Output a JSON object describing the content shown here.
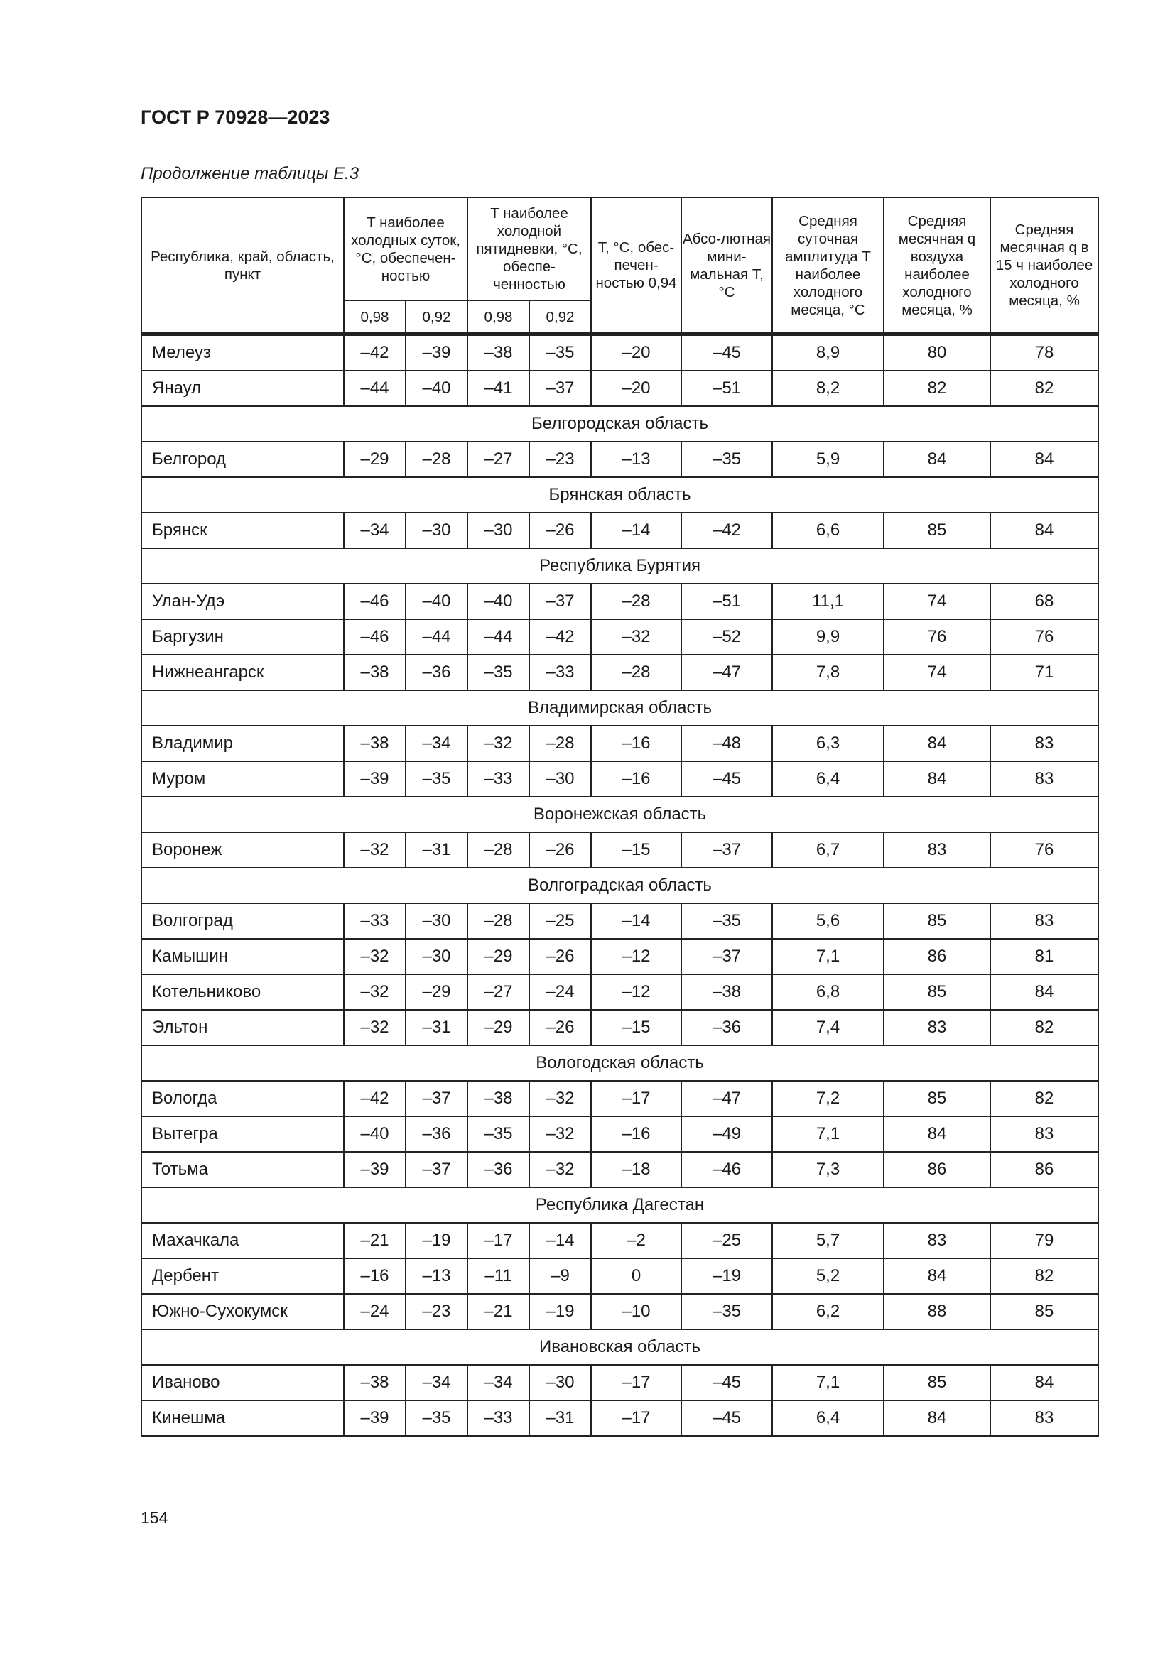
{
  "document": {
    "title": "ГОСТ Р 70928—2023",
    "caption": "Продолжение таблицы Е.3",
    "page_number": "154"
  },
  "table": {
    "headers": {
      "location": "Республика, край, область, пункт",
      "coldest_day": "T наиболее холодных суток, °С, обеспечен-ностью",
      "coldest_5day": "T наиболее холодной пятидневки, °С, обеспе-ченностью",
      "t_094": "T, °С, обес-печен-ностью 0,94",
      "abs_min": "Абсо-лютная мини-мальная T, °С",
      "daily_amplitude": "Средняя суточная амплитуда T наиболее холодного месяца, °С",
      "monthly_humidity": "Средняя месячная q воздуха наиболее холодного месяца, %",
      "humidity_15h": "Средняя месячная q в 15 ч наиболее холодного месяца, %",
      "sub": [
        "0,98",
        "0,92",
        "0,98",
        "0,92"
      ]
    },
    "rows": [
      {
        "name": "Мелеуз",
        "values": [
          "–42",
          "–39",
          "–38",
          "–35",
          "–20",
          "–45",
          "8,9",
          "80",
          "78"
        ]
      },
      {
        "name": "Янаул",
        "values": [
          "–44",
          "–40",
          "–41",
          "–37",
          "–20",
          "–51",
          "8,2",
          "82",
          "82"
        ]
      },
      {
        "region": "Белгородская область"
      },
      {
        "name": "Белгород",
        "values": [
          "–29",
          "–28",
          "–27",
          "–23",
          "–13",
          "–35",
          "5,9",
          "84",
          "84"
        ]
      },
      {
        "region": "Брянская область"
      },
      {
        "name": "Брянск",
        "values": [
          "–34",
          "–30",
          "–30",
          "–26",
          "–14",
          "–42",
          "6,6",
          "85",
          "84"
        ]
      },
      {
        "region": "Республика Бурятия"
      },
      {
        "name": "Улан-Удэ",
        "values": [
          "–46",
          "–40",
          "–40",
          "–37",
          "–28",
          "–51",
          "11,1",
          "74",
          "68"
        ]
      },
      {
        "name": "Баргузин",
        "values": [
          "–46",
          "–44",
          "–44",
          "–42",
          "–32",
          "–52",
          "9,9",
          "76",
          "76"
        ]
      },
      {
        "name": "Нижнеангарск",
        "values": [
          "–38",
          "–36",
          "–35",
          "–33",
          "–28",
          "–47",
          "7,8",
          "74",
          "71"
        ]
      },
      {
        "region": "Владимирская область"
      },
      {
        "name": "Владимир",
        "values": [
          "–38",
          "–34",
          "–32",
          "–28",
          "–16",
          "–48",
          "6,3",
          "84",
          "83"
        ]
      },
      {
        "name": "Муром",
        "values": [
          "–39",
          "–35",
          "–33",
          "–30",
          "–16",
          "–45",
          "6,4",
          "84",
          "83"
        ]
      },
      {
        "region": "Воронежская область"
      },
      {
        "name": "Воронеж",
        "values": [
          "–32",
          "–31",
          "–28",
          "–26",
          "–15",
          "–37",
          "6,7",
          "83",
          "76"
        ]
      },
      {
        "region": "Волгоградская область"
      },
      {
        "name": "Волгоград",
        "values": [
          "–33",
          "–30",
          "–28",
          "–25",
          "–14",
          "–35",
          "5,6",
          "85",
          "83"
        ]
      },
      {
        "name": "Камышин",
        "values": [
          "–32",
          "–30",
          "–29",
          "–26",
          "–12",
          "–37",
          "7,1",
          "86",
          "81"
        ]
      },
      {
        "name": "Котельниково",
        "values": [
          "–32",
          "–29",
          "–27",
          "–24",
          "–12",
          "–38",
          "6,8",
          "85",
          "84"
        ]
      },
      {
        "name": "Эльтон",
        "values": [
          "–32",
          "–31",
          "–29",
          "–26",
          "–15",
          "–36",
          "7,4",
          "83",
          "82"
        ]
      },
      {
        "region": "Вологодская область"
      },
      {
        "name": "Вологда",
        "values": [
          "–42",
          "–37",
          "–38",
          "–32",
          "–17",
          "–47",
          "7,2",
          "85",
          "82"
        ]
      },
      {
        "name": "Вытегра",
        "values": [
          "–40",
          "–36",
          "–35",
          "–32",
          "–16",
          "–49",
          "7,1",
          "84",
          "83"
        ]
      },
      {
        "name": "Тотьма",
        "values": [
          "–39",
          "–37",
          "–36",
          "–32",
          "–18",
          "–46",
          "7,3",
          "86",
          "86"
        ]
      },
      {
        "region": "Республика Дагестан"
      },
      {
        "name": "Махачкала",
        "values": [
          "–21",
          "–19",
          "–17",
          "–14",
          "–2",
          "–25",
          "5,7",
          "83",
          "79"
        ]
      },
      {
        "name": "Дербент",
        "values": [
          "–16",
          "–13",
          "–11",
          "–9",
          "0",
          "–19",
          "5,2",
          "84",
          "82"
        ]
      },
      {
        "name": "Южно-Сухокумск",
        "values": [
          "–24",
          "–23",
          "–21",
          "–19",
          "–10",
          "–35",
          "6,2",
          "88",
          "85"
        ]
      },
      {
        "region": "Ивановская область"
      },
      {
        "name": "Иваново",
        "values": [
          "–38",
          "–34",
          "–34",
          "–30",
          "–17",
          "–45",
          "7,1",
          "85",
          "84"
        ]
      },
      {
        "name": "Кинешма",
        "values": [
          "–39",
          "–35",
          "–33",
          "–31",
          "–17",
          "–45",
          "6,4",
          "84",
          "83"
        ]
      }
    ]
  }
}
